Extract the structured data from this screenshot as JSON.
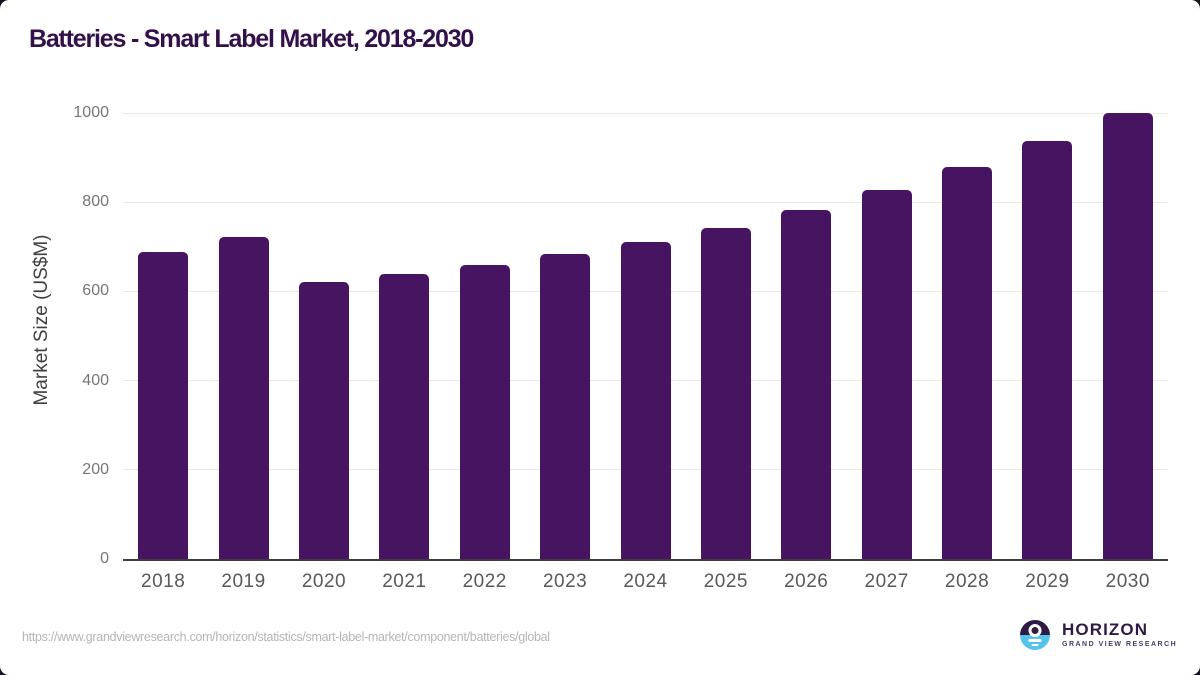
{
  "chart_data": {
    "type": "bar",
    "title": "Batteries - Smart Label Market, 2018-2030",
    "categories": [
      "2018",
      "2019",
      "2020",
      "2021",
      "2022",
      "2023",
      "2024",
      "2025",
      "2026",
      "2027",
      "2028",
      "2029",
      "2030"
    ],
    "values": [
      689,
      722,
      621,
      639,
      660,
      684,
      710,
      743,
      783,
      828,
      879,
      937,
      1000
    ],
    "xlabel": "",
    "ylabel": "Market Size (US$M)",
    "ylim": [
      0,
      1000
    ],
    "yticks": [
      0,
      200,
      400,
      600,
      800,
      1000
    ],
    "grid": true,
    "legend": "none",
    "bar_color": "#471461"
  },
  "footer": {
    "source_url": "https://www.grandviewresearch.com/horizon/statistics/smart-label-market/component/batteries/global",
    "logo": {
      "brand": "HORIZON",
      "sub_brand": "GRAND VIEW RESEARCH"
    }
  },
  "colors": {
    "bar": "#471461",
    "title": "#331049",
    "grid_line": "#e9e9e9",
    "axis_line": "#3d3d3d",
    "x_tick": "#595959",
    "y_tick": "#767676",
    "y_axis_title": "#3f3f3f",
    "source_url": "#b5b5b5",
    "logo_dark_purple": "#2d1b45",
    "logo_light_blue": "#56c3ec",
    "logo_sub_text": "#4a3b66",
    "background": "#ffffff",
    "outer_background": "#17121f"
  }
}
